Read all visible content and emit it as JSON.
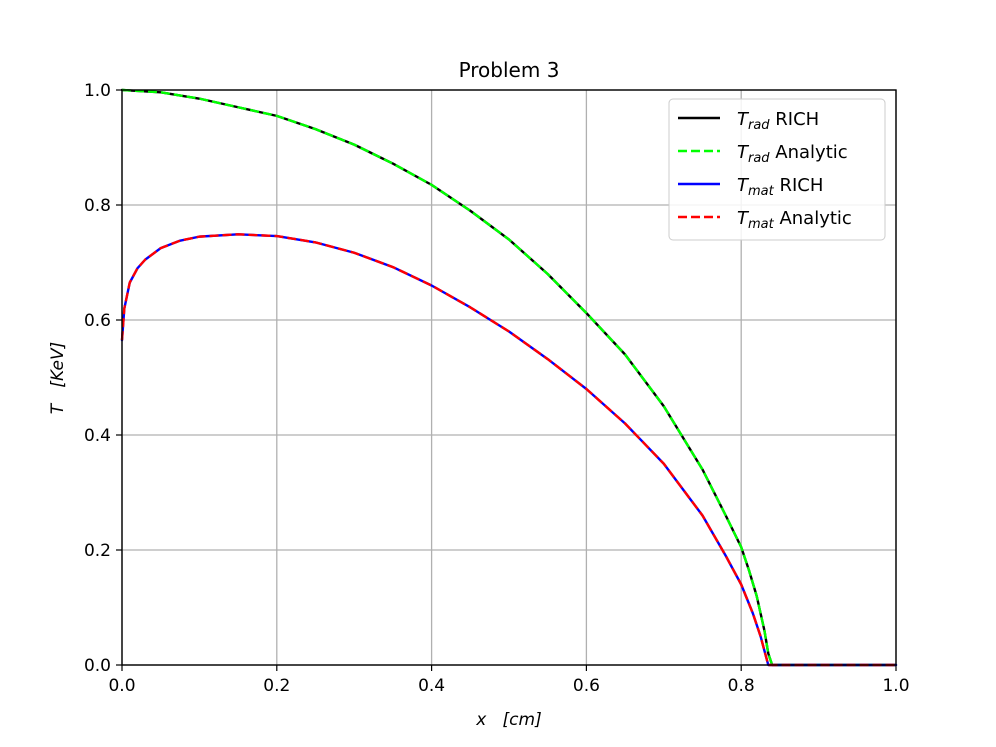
{
  "chart_data": {
    "type": "line",
    "title": "Problem 3",
    "xlabel": {
      "var": "x",
      "unit": "[cm]"
    },
    "ylabel": {
      "var": "T",
      "unit": "[KeV]"
    },
    "xlim": [
      0.0,
      1.0
    ],
    "ylim": [
      0.0,
      1.0
    ],
    "xticks": [
      "0.0",
      "0.2",
      "0.4",
      "0.6",
      "0.8",
      "1.0"
    ],
    "yticks": [
      "0.0",
      "0.2",
      "0.4",
      "0.6",
      "0.8",
      "1.0"
    ],
    "grid": true,
    "legend_position": "top-right",
    "series": [
      {
        "name": "T_rad RICH",
        "legend": {
          "sym": "T",
          "sub": "rad",
          "suffix": "RICH"
        },
        "color": "#000000",
        "style": "solid",
        "x": [
          0.0,
          0.05,
          0.1,
          0.15,
          0.2,
          0.25,
          0.3,
          0.35,
          0.4,
          0.45,
          0.5,
          0.55,
          0.6,
          0.65,
          0.7,
          0.75,
          0.78,
          0.8,
          0.81,
          0.82,
          0.83,
          0.835,
          0.84,
          0.86,
          0.9,
          0.95,
          1.0
        ],
        "y": [
          1.0,
          0.996,
          0.985,
          0.97,
          0.955,
          0.932,
          0.905,
          0.872,
          0.835,
          0.79,
          0.74,
          0.68,
          0.612,
          0.54,
          0.45,
          0.34,
          0.26,
          0.205,
          0.165,
          0.12,
          0.06,
          0.02,
          0.0,
          0.0,
          0.0,
          0.0,
          0.0
        ]
      },
      {
        "name": "T_rad Analytic",
        "legend": {
          "sym": "T",
          "sub": "rad",
          "suffix": "Analytic"
        },
        "color": "#00ff00",
        "style": "dashed",
        "x": [
          0.0,
          0.05,
          0.1,
          0.15,
          0.2,
          0.25,
          0.3,
          0.35,
          0.4,
          0.45,
          0.5,
          0.55,
          0.6,
          0.65,
          0.7,
          0.75,
          0.78,
          0.8,
          0.81,
          0.82,
          0.83,
          0.835,
          0.84,
          0.86,
          0.9,
          0.95,
          1.0
        ],
        "y": [
          1.0,
          0.996,
          0.985,
          0.97,
          0.955,
          0.932,
          0.905,
          0.872,
          0.835,
          0.79,
          0.74,
          0.68,
          0.612,
          0.54,
          0.45,
          0.34,
          0.26,
          0.205,
          0.165,
          0.12,
          0.06,
          0.02,
          0.0,
          0.0,
          0.0,
          0.0,
          0.0
        ]
      },
      {
        "name": "T_mat RICH",
        "legend": {
          "sym": "T",
          "sub": "mat",
          "suffix": "RICH"
        },
        "color": "#0000ff",
        "style": "solid",
        "x": [
          0.0,
          0.003,
          0.01,
          0.02,
          0.03,
          0.05,
          0.075,
          0.1,
          0.15,
          0.2,
          0.25,
          0.3,
          0.35,
          0.4,
          0.45,
          0.5,
          0.55,
          0.6,
          0.65,
          0.7,
          0.75,
          0.78,
          0.8,
          0.815,
          0.825,
          0.83,
          0.835,
          0.84,
          0.86,
          0.9,
          0.95,
          1.0
        ],
        "y": [
          0.565,
          0.62,
          0.665,
          0.69,
          0.705,
          0.725,
          0.738,
          0.745,
          0.749,
          0.746,
          0.735,
          0.717,
          0.692,
          0.66,
          0.622,
          0.58,
          0.532,
          0.48,
          0.42,
          0.35,
          0.26,
          0.19,
          0.14,
          0.09,
          0.05,
          0.025,
          0.0,
          0.0,
          0.0,
          0.0,
          0.0,
          0.0
        ]
      },
      {
        "name": "T_mat Analytic",
        "legend": {
          "sym": "T",
          "sub": "mat",
          "suffix": "Analytic"
        },
        "color": "#ff0000",
        "style": "dashed",
        "x": [
          0.0,
          0.003,
          0.01,
          0.02,
          0.03,
          0.05,
          0.075,
          0.1,
          0.15,
          0.2,
          0.25,
          0.3,
          0.35,
          0.4,
          0.45,
          0.5,
          0.55,
          0.6,
          0.65,
          0.7,
          0.75,
          0.78,
          0.8,
          0.815,
          0.825,
          0.83,
          0.835,
          0.84,
          0.86,
          0.9,
          0.95,
          1.0
        ],
        "y": [
          0.565,
          0.62,
          0.665,
          0.69,
          0.705,
          0.725,
          0.738,
          0.745,
          0.749,
          0.746,
          0.735,
          0.717,
          0.692,
          0.66,
          0.622,
          0.58,
          0.532,
          0.48,
          0.42,
          0.35,
          0.26,
          0.19,
          0.14,
          0.09,
          0.05,
          0.025,
          0.0,
          0.0,
          0.0,
          0.0,
          0.0,
          0.0
        ]
      }
    ]
  }
}
